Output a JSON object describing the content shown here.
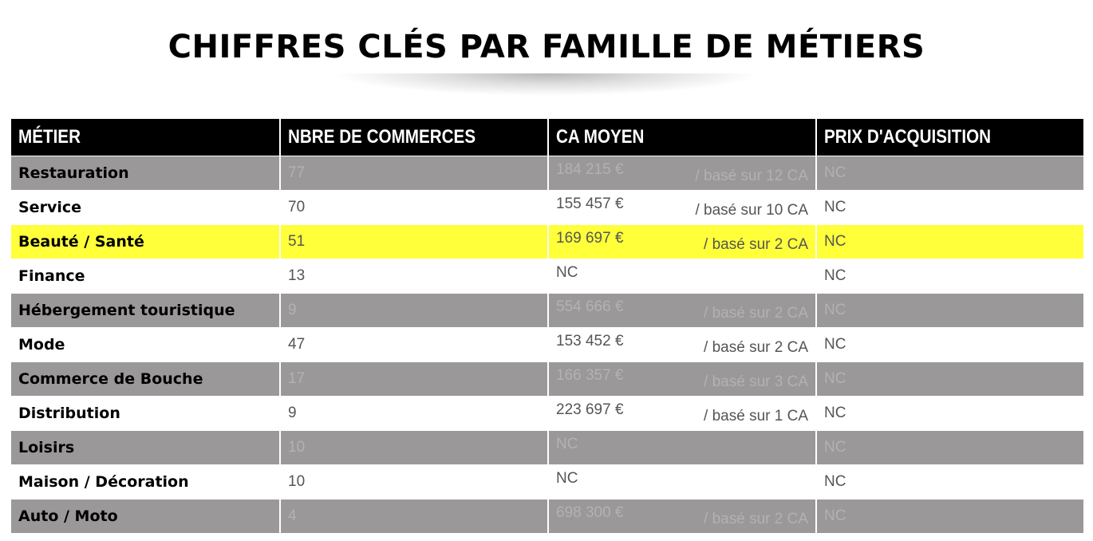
{
  "title": "CHIFFRES CLÉS PAR FAMILLE DE MÉTIERS",
  "columns": [
    "MÉTIER",
    "NBRE DE COMMERCES",
    "CA MOYEN",
    "PRIX D'ACQUISITION"
  ],
  "colors": {
    "header": "#000000",
    "gray_row": "#9a9899",
    "highlight_row": "#ffff3a",
    "white_row": "#ffffff"
  },
  "rows": [
    {
      "metier": "Restauration",
      "nbre": "77",
      "ca": "184 215 €",
      "ca_note": "/ basé sur 12 CA",
      "prix": "NC",
      "style": "gray"
    },
    {
      "metier": "Service",
      "nbre": "70",
      "ca": "155 457 €",
      "ca_note": "/ basé sur 10 CA",
      "prix": "NC",
      "style": "white"
    },
    {
      "metier": "Beauté / Santé",
      "nbre": "51",
      "ca": "169 697 €",
      "ca_note": "/ basé sur 2 CA",
      "prix": "NC",
      "style": "yellow"
    },
    {
      "metier": "Finance",
      "nbre": "13",
      "ca": "NC",
      "ca_note": "",
      "prix": "NC",
      "style": "white"
    },
    {
      "metier": "Hébergement touristique",
      "nbre": "9",
      "ca": "554 666 €",
      "ca_note": "/ basé sur 2 CA",
      "prix": "NC",
      "style": "gray"
    },
    {
      "metier": "Mode",
      "nbre": "47",
      "ca": "153 452 €",
      "ca_note": "/ basé sur 2 CA",
      "prix": "NC",
      "style": "white"
    },
    {
      "metier": "Commerce de Bouche",
      "nbre": "17",
      "ca": "166 357 €",
      "ca_note": "/ basé sur 3 CA",
      "prix": "NC",
      "style": "gray"
    },
    {
      "metier": "Distribution",
      "nbre": "9",
      "ca": "223 697 €",
      "ca_note": "/ basé sur 1 CA",
      "prix": "NC",
      "style": "white"
    },
    {
      "metier": "Loisirs",
      "nbre": "10",
      "ca": "NC",
      "ca_note": "",
      "prix": "NC",
      "style": "gray"
    },
    {
      "metier": "Maison / Décoration",
      "nbre": "10",
      "ca": "NC",
      "ca_note": "",
      "prix": "NC",
      "style": "white"
    },
    {
      "metier": "Auto / Moto",
      "nbre": "4",
      "ca": "698 300 €",
      "ca_note": "/ basé sur 2 CA",
      "prix": "NC",
      "style": "gray"
    }
  ]
}
